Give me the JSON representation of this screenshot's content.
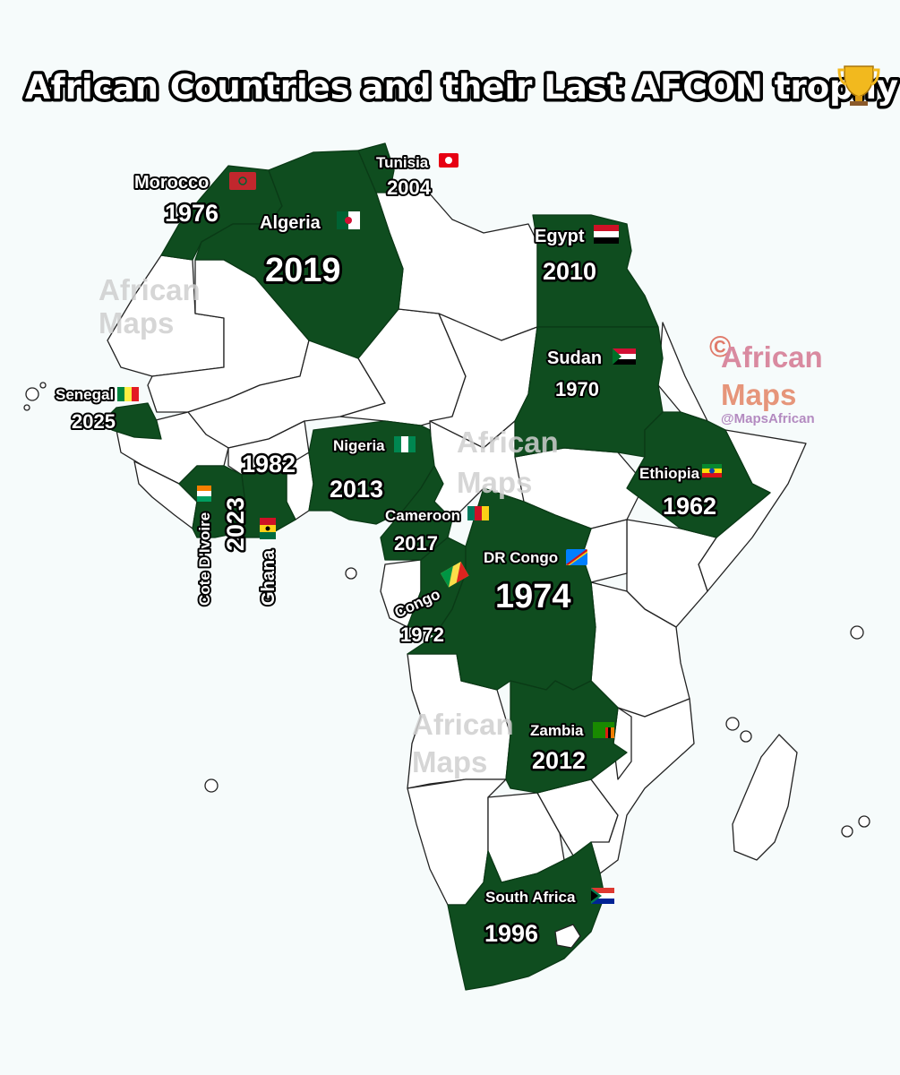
{
  "title": "African Countries and their Last AFCON trophy",
  "title_icon": "trophy-icon",
  "colors": {
    "winner_fill": "#0f4d1f",
    "country_fill": "#ffffff",
    "background": "#f6fbfb",
    "watermark_a": "#f08a7a",
    "watermark_b": "#b07ac8"
  },
  "winners": [
    {
      "id": "morocco",
      "name": "Morocco",
      "year": "1976",
      "flag": "morocco-flag-icon"
    },
    {
      "id": "algeria",
      "name": "Algeria",
      "year": "2019",
      "flag": "algeria-flag-icon"
    },
    {
      "id": "tunisia",
      "name": "Tunisia",
      "year": "2004",
      "flag": "tunisia-flag-icon"
    },
    {
      "id": "egypt",
      "name": "Egypt",
      "year": "2010",
      "flag": "egypt-flag-icon"
    },
    {
      "id": "sudan",
      "name": "Sudan",
      "year": "1970",
      "flag": "sudan-flag-icon"
    },
    {
      "id": "ethiopia",
      "name": "Ethiopia",
      "year": "1962",
      "flag": "ethiopia-flag-icon"
    },
    {
      "id": "senegal",
      "name": "Senegal",
      "year": "2025",
      "flag": "senegal-flag-icon"
    },
    {
      "id": "nigeria",
      "name": "Nigeria",
      "year": "2013",
      "flag": "nigeria-flag-icon"
    },
    {
      "id": "cameroon",
      "name": "Cameroon",
      "year": "2017",
      "flag": "cameroon-flag-icon"
    },
    {
      "id": "cotedivoire",
      "name": "Cote D'Ivoire",
      "year": "2023",
      "flag": "cotedivoire-flag-icon"
    },
    {
      "id": "ghana",
      "name": "Ghana",
      "year": "1982",
      "flag": "ghana-flag-icon"
    },
    {
      "id": "congo",
      "name": "Congo",
      "year": "1972",
      "flag": "congo-flag-icon"
    },
    {
      "id": "drcongo",
      "name": "DR Congo",
      "year": "1974",
      "flag": "drcongo-flag-icon"
    },
    {
      "id": "zambia",
      "name": "Zambia",
      "year": "2012",
      "flag": "zambia-flag-icon"
    },
    {
      "id": "southafrica",
      "name": "South Africa",
      "year": "1996",
      "flag": "southafrica-flag-icon"
    }
  ],
  "watermarks": {
    "main_line1": "African",
    "main_line2": "Maps",
    "copyright": "©",
    "handle": "@MapsAfrican"
  }
}
